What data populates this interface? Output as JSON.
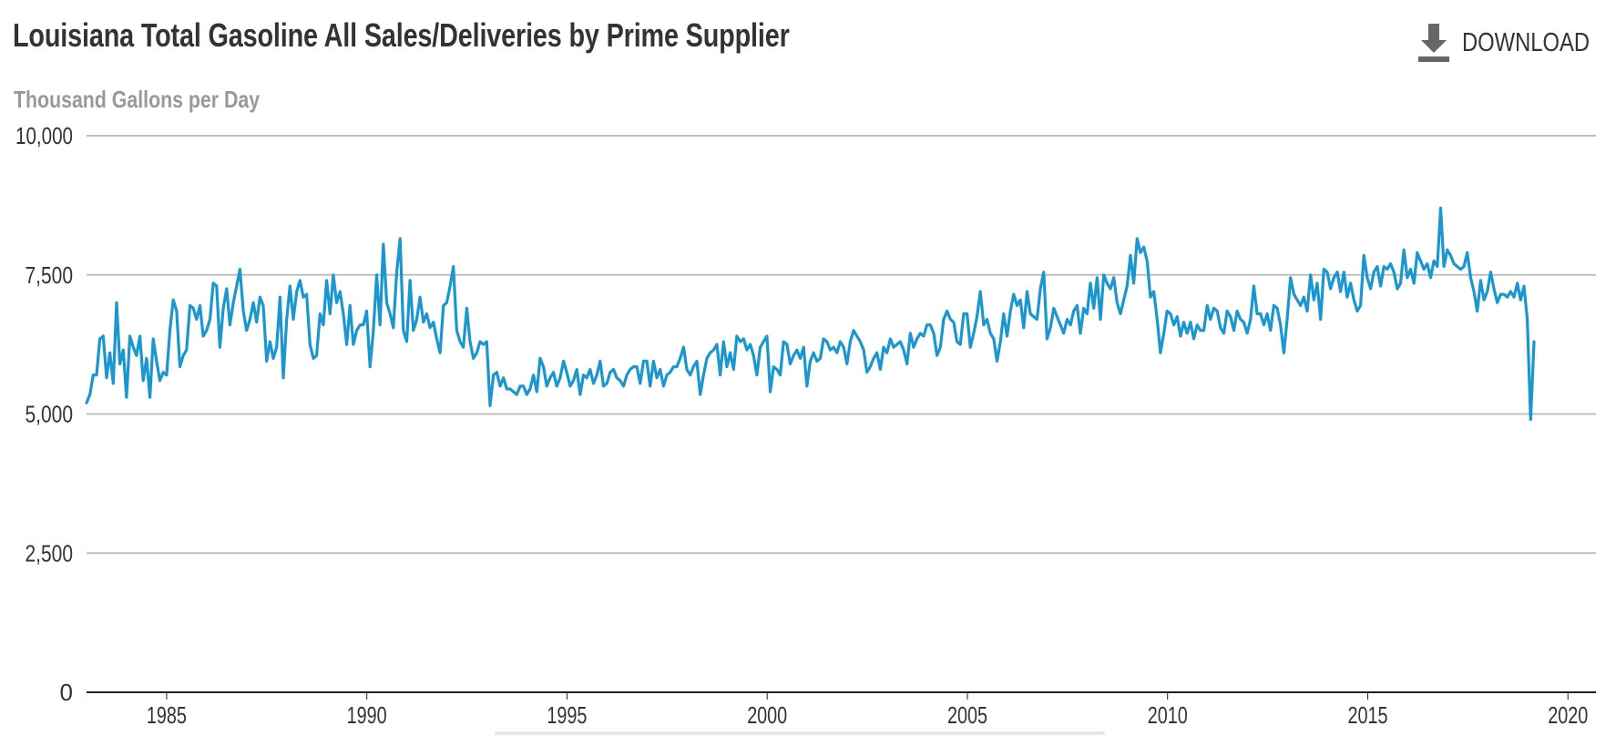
{
  "header": {
    "title": "Louisiana Total Gasoline All Sales/Deliveries by Prime Supplier",
    "subtitle": "Thousand Gallons per Day"
  },
  "toolbar": {
    "download_label": "DOWNLOAD",
    "download_icon": "download-icon"
  },
  "colors": {
    "series": "#1a96d0",
    "grid": "#bfbfbf",
    "axis": "#222222",
    "text": "#333333",
    "subtitle": "#999999"
  },
  "chart_data": {
    "type": "line",
    "title": "Louisiana Total Gasoline All Sales/Deliveries by Prime Supplier",
    "ylabel": "Thousand Gallons per Day",
    "xlabel": "",
    "grid": true,
    "legend": "none",
    "xlim": [
      1983.0,
      2020.7
    ],
    "ylim": [
      0,
      10000
    ],
    "x_ticks": [
      1985,
      1990,
      1995,
      2000,
      2005,
      2010,
      2015,
      2020
    ],
    "y_ticks": [
      0,
      2500,
      5000,
      7500,
      10000
    ],
    "y_tick_labels": [
      "0",
      "2,500",
      "5,000",
      "7,500",
      "10,000"
    ],
    "series": [
      {
        "name": "Louisiana Total Gasoline All Sales/Deliveries by Prime Supplier",
        "x_start": 1983.0,
        "x_step": 0.0833,
        "values": [
          5200,
          5350,
          5700,
          5700,
          6350,
          6400,
          5650,
          6100,
          5550,
          7000,
          5900,
          6150,
          5300,
          6400,
          6200,
          6050,
          6400,
          5600,
          6000,
          5300,
          6350,
          5950,
          5600,
          5750,
          5700,
          6500,
          7050,
          6850,
          5850,
          6050,
          6150,
          6950,
          6900,
          6700,
          6950,
          6400,
          6500,
          6700,
          7350,
          7300,
          6200,
          6900,
          7250,
          6600,
          7000,
          7300,
          7600,
          6850,
          6500,
          6700,
          7000,
          6650,
          7100,
          6950,
          5950,
          6300,
          6000,
          6200,
          7100,
          5650,
          6700,
          7300,
          6700,
          7200,
          7400,
          7100,
          7150,
          6250,
          6000,
          6050,
          6800,
          6600,
          7400,
          6800,
          7500,
          7000,
          7200,
          6800,
          6250,
          6950,
          6250,
          6500,
          6600,
          6600,
          6850,
          5850,
          6500,
          7500,
          6600,
          8050,
          7000,
          6800,
          6550,
          7550,
          8150,
          6500,
          6300,
          7400,
          6500,
          6700,
          7100,
          6650,
          6800,
          6550,
          6650,
          6350,
          6100,
          6950,
          7000,
          7300,
          7650,
          6500,
          6300,
          6200,
          6900,
          6300,
          6000,
          6100,
          6300,
          6250,
          6300,
          5150,
          5700,
          5750,
          5500,
          5650,
          5450,
          5450,
          5400,
          5350,
          5500,
          5500,
          5350,
          5450,
          5700,
          5400,
          6000,
          5850,
          5500,
          5650,
          5750,
          5500,
          5650,
          5950,
          5750,
          5500,
          5600,
          5800,
          5350,
          5700,
          5650,
          5800,
          5550,
          5700,
          5950,
          5500,
          5550,
          5750,
          5800,
          5650,
          5600,
          5500,
          5700,
          5800,
          5850,
          5850,
          5550,
          5950,
          5950,
          5500,
          5950,
          5650,
          5800,
          5500,
          5700,
          5750,
          5850,
          5850,
          6000,
          6200,
          5800,
          5700,
          5850,
          5950,
          5350,
          5700,
          6000,
          6100,
          6150,
          6250,
          5700,
          6300,
          5850,
          6100,
          5800,
          6400,
          6300,
          6350,
          6150,
          6250,
          6050,
          5700,
          6200,
          6300,
          6400,
          5400,
          5850,
          5800,
          5700,
          6300,
          6250,
          5900,
          6050,
          6150,
          6000,
          6200,
          5500,
          5950,
          6100,
          5950,
          6000,
          6350,
          6300,
          6150,
          6200,
          6100,
          6300,
          6200,
          5900,
          6300,
          6500,
          6400,
          6300,
          6150,
          5750,
          5850,
          6000,
          6100,
          5800,
          6200,
          6100,
          6350,
          6200,
          6250,
          6300,
          6150,
          5900,
          6450,
          6200,
          6350,
          6450,
          6400,
          6600,
          6600,
          6450,
          6050,
          6200,
          6700,
          6850,
          6700,
          6650,
          6300,
          6250,
          6800,
          6800,
          6200,
          6450,
          6750,
          7200,
          6600,
          6700,
          6450,
          6350,
          5950,
          6300,
          6800,
          6400,
          6850,
          7150,
          6950,
          7050,
          6550,
          7200,
          6800,
          6750,
          6700,
          7250,
          7550,
          6350,
          6550,
          6900,
          6750,
          6600,
          6450,
          6700,
          6600,
          6850,
          6950,
          6450,
          6900,
          6800,
          7350,
          6900,
          7450,
          6700,
          7500,
          7350,
          7250,
          7450,
          7000,
          6800,
          7050,
          7300,
          7850,
          7350,
          8150,
          7900,
          8000,
          7750,
          7100,
          7200,
          6700,
          6100,
          6450,
          6850,
          6800,
          6600,
          6750,
          6400,
          6650,
          6450,
          6650,
          6350,
          6600,
          6500,
          6500,
          6950,
          6700,
          6900,
          6850,
          6550,
          6450,
          6850,
          6750,
          6500,
          6850,
          6700,
          6650,
          6450,
          6700,
          7300,
          6800,
          6800,
          6600,
          6800,
          6500,
          6950,
          6900,
          6600,
          6100,
          6700,
          7450,
          7150,
          7050,
          6950,
          7100,
          6850,
          7500,
          7050,
          7350,
          6700,
          7600,
          7550,
          7250,
          7450,
          7550,
          7200,
          7550,
          7100,
          7350,
          7050,
          6850,
          6950,
          7850,
          7450,
          7250,
          7550,
          7650,
          7300,
          7650,
          7600,
          7700,
          7550,
          7250,
          7350,
          7950,
          7450,
          7600,
          7350,
          7900,
          7750,
          7600,
          7700,
          7450,
          7750,
          7650,
          8700,
          7650,
          7950,
          7850,
          7700,
          7650,
          7600,
          7650,
          7900,
          7450,
          7200,
          6850,
          7400,
          7050,
          7200,
          7550,
          7250,
          7000,
          7150,
          7150,
          7100,
          7200,
          7100,
          7350,
          7050,
          7300,
          6700,
          4900,
          6300
        ]
      }
    ]
  }
}
